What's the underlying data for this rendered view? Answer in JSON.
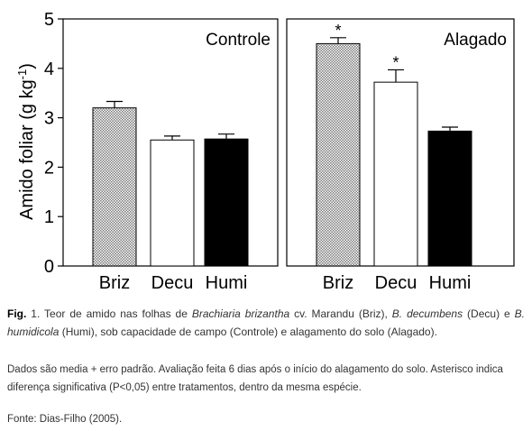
{
  "chart_data": {
    "type": "bar",
    "ylabel": "Amido foliar (g kg",
    "ylabel_superscript": "-1",
    "ylabel_close": ")",
    "ylim": [
      0,
      5
    ],
    "yticks": [
      "0",
      "1",
      "2",
      "3",
      "4",
      "5"
    ],
    "categories": [
      "Briz",
      "Decu",
      "Humi"
    ],
    "bar_styles": [
      {
        "category": "Briz",
        "fill": "hatched",
        "color": "#9a9a9a"
      },
      {
        "category": "Decu",
        "fill": "#ffffff"
      },
      {
        "category": "Humi",
        "fill": "#000000"
      }
    ],
    "panels": [
      {
        "title": "Controle",
        "values": [
          3.2,
          2.55,
          2.57
        ],
        "errors": [
          0.13,
          0.08,
          0.1
        ],
        "significance": [
          "",
          "",
          ""
        ]
      },
      {
        "title": "Alagado",
        "values": [
          4.5,
          3.72,
          2.73
        ],
        "errors": [
          0.12,
          0.25,
          0.08
        ],
        "significance": [
          "*",
          "*",
          ""
        ]
      }
    ]
  },
  "caption": {
    "fig_label": "Fig.",
    "fig_number": "1",
    "text_1": ". Teor de amido nas folhas de ",
    "species_1": "Brachiaria brizantha",
    "text_2": " cv. Marandu (Briz), ",
    "species_2": "B. decumbens",
    "text_3": " (Decu) e ",
    "species_3": "B. humidicola",
    "text_4": " (Humi), sob capacidade de campo (Controle) e alagamento do solo (Alagado).",
    "notes": "Dados são media + erro padrão. Avaliação feita 6 dias após o início do alagamento do solo. Asterisco indica diferença significativa (P<0,05) entre tratamentos, dentro da mesma espécie.",
    "source": "Fonte: Dias-Filho (2005)."
  }
}
